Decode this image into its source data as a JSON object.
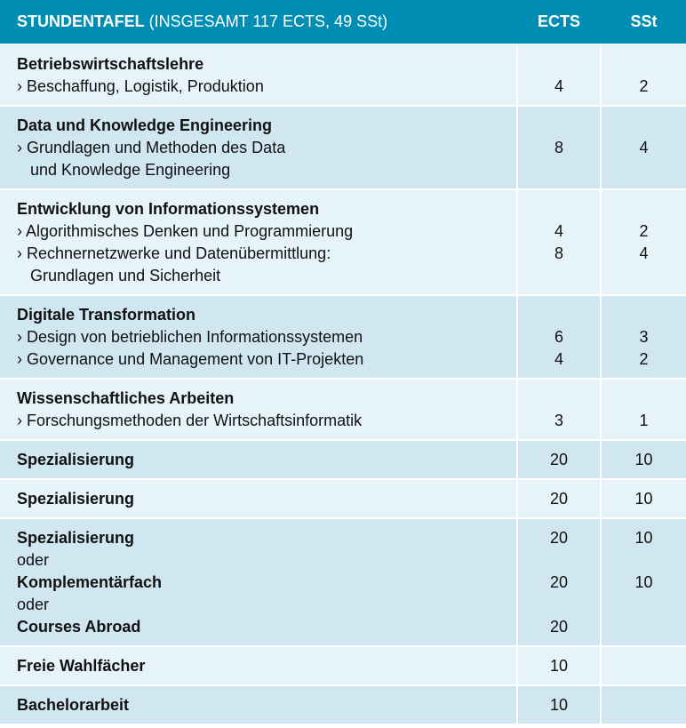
{
  "header": {
    "title_bold": "STUNDENTAFEL",
    "title_rest": " (INSGESAMT 117 ECTS, 49 SSt)",
    "ects": "ECTS",
    "sst": "SSt"
  },
  "colors": {
    "header": "#008db3",
    "row_light": "#e6f3f9",
    "row_dark": "#d0e6f1"
  },
  "rows": [
    {
      "shade": "light",
      "lines": [
        {
          "text": "Betriebswirtschaftslehre",
          "bold": true,
          "ects": "",
          "sst": ""
        },
        {
          "text": "› Beschaffung, Logistik, Produktion",
          "bold": false,
          "ects": "4",
          "sst": "2"
        }
      ]
    },
    {
      "shade": "dark",
      "lines": [
        {
          "text": "Data und Knowledge Engineering",
          "bold": true,
          "ects": "",
          "sst": ""
        },
        {
          "text": "› Grundlagen und Methoden des Data",
          "bold": false,
          "ects": "8",
          "sst": "4"
        },
        {
          "text": "   und Knowledge Engineering",
          "bold": false,
          "ects": "",
          "sst": ""
        }
      ]
    },
    {
      "shade": "light",
      "lines": [
        {
          "text": "Entwicklung von Informationssystemen",
          "bold": true,
          "ects": "",
          "sst": ""
        },
        {
          "text": "› Algorithmisches Denken und Programmierung",
          "bold": false,
          "ects": "4",
          "sst": "2"
        },
        {
          "text": "› Rechnernetzwerke und Datenübermittlung:",
          "bold": false,
          "ects": "8",
          "sst": "4"
        },
        {
          "text": "   Grundlagen und Sicherheit",
          "bold": false,
          "ects": "",
          "sst": ""
        }
      ]
    },
    {
      "shade": "dark",
      "lines": [
        {
          "text": "Digitale Transformation",
          "bold": true,
          "ects": "",
          "sst": ""
        },
        {
          "text": "› Design von betrieblichen Informationssystemen",
          "bold": false,
          "ects": "6",
          "sst": "3"
        },
        {
          "text": "› Governance und Management von IT-Projekten",
          "bold": false,
          "ects": "4",
          "sst": "2"
        }
      ]
    },
    {
      "shade": "light",
      "lines": [
        {
          "text": "Wissenschaftliches Arbeiten",
          "bold": true,
          "ects": "",
          "sst": ""
        },
        {
          "text": "› Forschungsmethoden der Wirtschaftsinformatik",
          "bold": false,
          "ects": "3",
          "sst": "1"
        }
      ]
    },
    {
      "shade": "dark",
      "lines": [
        {
          "text": "Spezialisierung",
          "bold": true,
          "ects": "20",
          "sst": "10"
        }
      ]
    },
    {
      "shade": "light",
      "lines": [
        {
          "text": "Spezialisierung",
          "bold": true,
          "ects": "20",
          "sst": "10"
        }
      ]
    },
    {
      "shade": "dark",
      "lines": [
        {
          "text": "Spezialisierung",
          "bold": true,
          "ects": "20",
          "sst": "10"
        },
        {
          "text": "oder",
          "bold": false,
          "ects": "",
          "sst": ""
        },
        {
          "text": "Komplementärfach",
          "bold": true,
          "ects": "20",
          "sst": "10"
        },
        {
          "text": "oder",
          "bold": false,
          "ects": "",
          "sst": ""
        },
        {
          "text": "Courses Abroad",
          "bold": true,
          "ects": "20",
          "sst": ""
        }
      ]
    },
    {
      "shade": "light",
      "lines": [
        {
          "text": "Freie Wahlfächer",
          "bold": true,
          "ects": "10",
          "sst": ""
        }
      ]
    },
    {
      "shade": "dark",
      "lines": [
        {
          "text": "Bachelorarbeit",
          "bold": true,
          "ects": "10",
          "sst": ""
        }
      ]
    }
  ]
}
